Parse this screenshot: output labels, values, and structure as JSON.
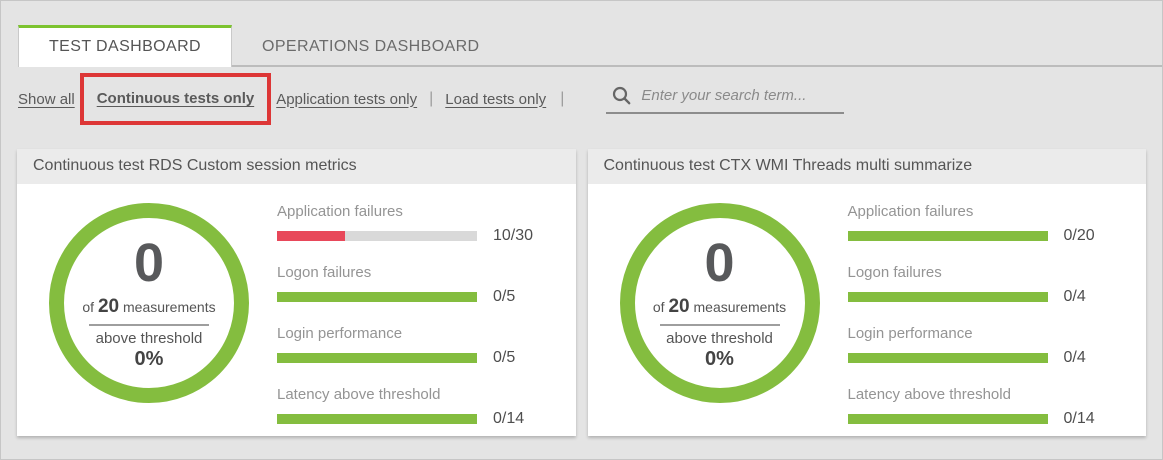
{
  "tabs": [
    {
      "label": "TEST DASHBOARD",
      "active": true
    },
    {
      "label": "OPERATIONS DASHBOARD",
      "active": false
    }
  ],
  "filters": {
    "show_all": "Show all",
    "continuous_only": "Continuous tests only",
    "application_only": "Application tests only",
    "load_only": "Load tests only",
    "separator": "|"
  },
  "search": {
    "placeholder": "Enter your search term...",
    "value": ""
  },
  "colors": {
    "accent_green": "#84bd3f",
    "alert_red": "#e8485a",
    "annotation_red": "#dd3636",
    "bar_track": "#d9d9d9",
    "tab_active_border": "#7cc32f"
  },
  "cards": [
    {
      "title": "Continuous test RDS Custom session metrics",
      "donut": {
        "count": "0",
        "of": "of",
        "total": "20",
        "measurements": "measurements",
        "threshold": "above threshold",
        "percent": "0%"
      },
      "metrics": [
        {
          "label": "Application failures",
          "value": "10/30",
          "fill_percent": 34,
          "fill_color": "#e8485a"
        },
        {
          "label": "Logon failures",
          "value": "0/5",
          "fill_percent": 100,
          "fill_color": "#84bd3f"
        },
        {
          "label": "Login performance",
          "value": "0/5",
          "fill_percent": 100,
          "fill_color": "#84bd3f"
        },
        {
          "label": "Latency above threshold",
          "value": "0/14",
          "fill_percent": 100,
          "fill_color": "#84bd3f"
        }
      ]
    },
    {
      "title": "Continuous test CTX WMI Threads multi summarize",
      "donut": {
        "count": "0",
        "of": "of",
        "total": "20",
        "measurements": "measurements",
        "threshold": "above threshold",
        "percent": "0%"
      },
      "metrics": [
        {
          "label": "Application failures",
          "value": "0/20",
          "fill_percent": 100,
          "fill_color": "#84bd3f"
        },
        {
          "label": "Logon failures",
          "value": "0/4",
          "fill_percent": 100,
          "fill_color": "#84bd3f"
        },
        {
          "label": "Login performance",
          "value": "0/4",
          "fill_percent": 100,
          "fill_color": "#84bd3f"
        },
        {
          "label": "Latency above threshold",
          "value": "0/14",
          "fill_percent": 100,
          "fill_color": "#84bd3f"
        }
      ]
    }
  ]
}
